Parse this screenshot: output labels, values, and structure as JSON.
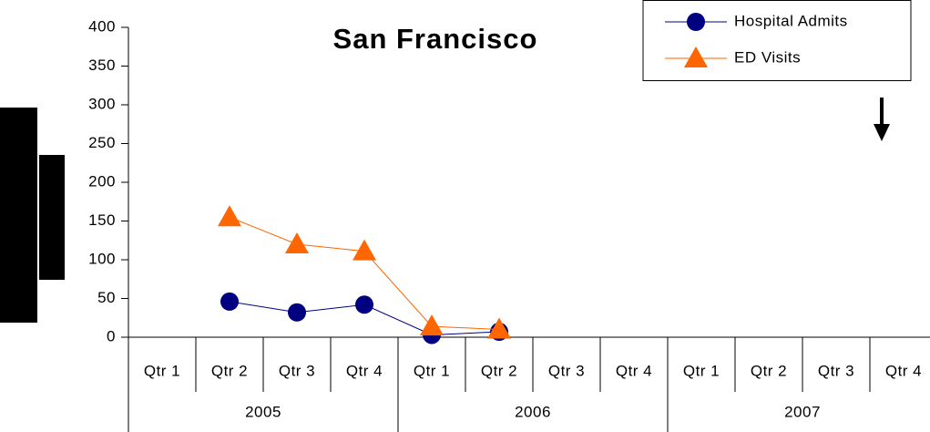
{
  "chart_data": {
    "type": "line",
    "title": "San Francisco",
    "categories": [
      "Qtr 1",
      "Qtr 2",
      "Qtr 3",
      "Qtr 4",
      "Qtr 1",
      "Qtr 2",
      "Qtr 3",
      "Qtr 4",
      "Qtr 1",
      "Qtr 2",
      "Qtr 3",
      "Qtr 4"
    ],
    "category_groups": [
      "2005",
      "2006",
      "2007"
    ],
    "series": [
      {
        "name": "Hospital Admits",
        "color": "#000080",
        "marker": "circle",
        "values": [
          null,
          46,
          32,
          42,
          3,
          7,
          null,
          null,
          null,
          null,
          null,
          null
        ]
      },
      {
        "name": "ED Visits",
        "color": "#ff6600",
        "marker": "triangle",
        "values": [
          null,
          155,
          120,
          111,
          14,
          10,
          null,
          null,
          null,
          null,
          null,
          null
        ]
      }
    ],
    "ylim": [
      0,
      400
    ],
    "yticks": [
      0,
      50,
      100,
      150,
      200,
      250,
      300,
      350,
      400
    ],
    "grid": false,
    "legend": "top-right"
  }
}
